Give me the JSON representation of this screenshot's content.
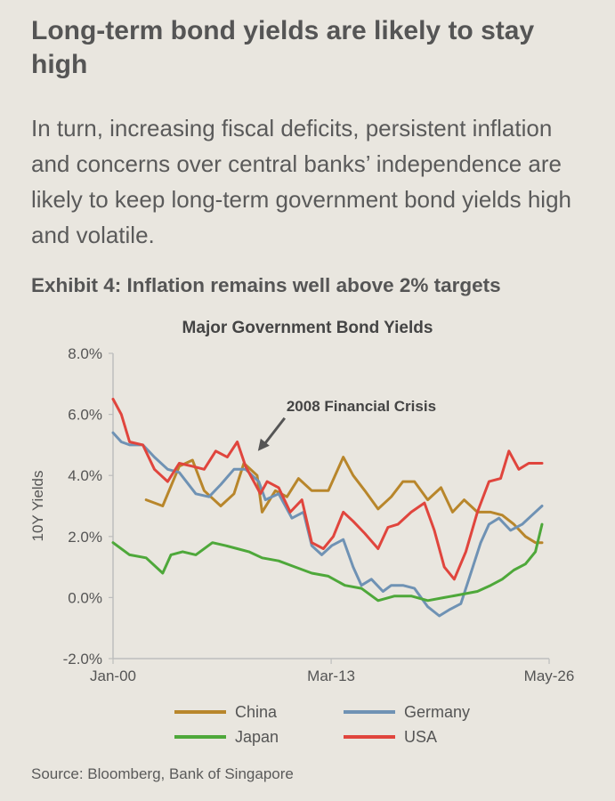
{
  "headline": "Long-term bond yields are likely to stay high",
  "intro": "In turn, increasing fiscal deficits, persistent inflation and concerns over central banks’ independence are likely to keep long-term government bond yields high and volatile.",
  "exhibit_title": "Exhibit 4: Inflation remains well above 2% targets",
  "source": "Source: Bloomberg, Bank of Singapore",
  "chart_data": {
    "type": "line",
    "title": "Major Government Bond Yields",
    "ylabel": "10Y Yields",
    "xlabel": "",
    "ylim": [
      -2.0,
      8.0
    ],
    "yticks": [
      -2.0,
      0.0,
      2.0,
      4.0,
      6.0,
      8.0
    ],
    "ytick_labels": [
      "-2.0%",
      "0.0%",
      "2.0%",
      "4.0%",
      "6.0%",
      "8.0%"
    ],
    "xlim": [
      2000,
      2026.33
    ],
    "xticks": [
      2000,
      2013.17,
      2026.33
    ],
    "xtick_labels": [
      "Jan-00",
      "Mar-13",
      "May-26"
    ],
    "legend_position": "bottom",
    "annotation": {
      "text": "2008 Financial Crisis",
      "x": 2008.75,
      "y": 4.8
    },
    "colors": {
      "China": "#b8862b",
      "Germany": "#6f92b4",
      "Japan": "#4ea83a",
      "USA": "#e0453d"
    },
    "series": [
      {
        "name": "China",
        "x": [
          2002.0,
          2003.0,
          2004.0,
          2004.8,
          2005.5,
          2006.5,
          2007.3,
          2007.9,
          2008.7,
          2009.0,
          2009.8,
          2010.5,
          2011.2,
          2012.0,
          2013.0,
          2013.9,
          2014.5,
          2015.2,
          2016.0,
          2016.8,
          2017.5,
          2018.2,
          2019.0,
          2019.8,
          2020.5,
          2021.2,
          2022.0,
          2022.8,
          2023.5,
          2024.2,
          2024.9,
          2025.5,
          2025.9
        ],
        "values": [
          3.2,
          3.0,
          4.3,
          4.5,
          3.5,
          3.0,
          3.4,
          4.4,
          4.0,
          2.8,
          3.5,
          3.3,
          3.9,
          3.5,
          3.5,
          4.6,
          4.0,
          3.5,
          2.9,
          3.3,
          3.8,
          3.8,
          3.2,
          3.6,
          2.8,
          3.2,
          2.8,
          2.8,
          2.7,
          2.4,
          2.0,
          1.8,
          1.8
        ]
      },
      {
        "name": "Germany",
        "x": [
          2000.0,
          2000.5,
          2001.0,
          2001.8,
          2002.5,
          2003.3,
          2004.0,
          2005.0,
          2005.8,
          2006.5,
          2007.3,
          2008.0,
          2008.8,
          2009.2,
          2010.0,
          2010.8,
          2011.5,
          2012.0,
          2012.6,
          2013.2,
          2013.9,
          2014.5,
          2015.0,
          2015.6,
          2016.3,
          2016.8,
          2017.5,
          2018.2,
          2019.0,
          2019.7,
          2020.3,
          2021.0,
          2021.6,
          2022.2,
          2022.7,
          2023.3,
          2024.0,
          2024.7,
          2025.3,
          2025.9
        ],
        "values": [
          5.4,
          5.1,
          5.0,
          5.0,
          4.6,
          4.2,
          4.1,
          3.4,
          3.3,
          3.7,
          4.2,
          4.2,
          3.8,
          3.2,
          3.4,
          2.6,
          2.8,
          1.7,
          1.4,
          1.7,
          1.9,
          1.0,
          0.4,
          0.6,
          0.2,
          0.4,
          0.4,
          0.3,
          -0.3,
          -0.6,
          -0.4,
          -0.2,
          0.8,
          1.8,
          2.4,
          2.6,
          2.2,
          2.4,
          2.7,
          3.0
        ]
      },
      {
        "name": "Japan",
        "x": [
          2000.0,
          2001.0,
          2002.0,
          2003.0,
          2003.5,
          2004.2,
          2005.0,
          2006.0,
          2006.8,
          2007.5,
          2008.2,
          2009.0,
          2010.0,
          2011.0,
          2012.0,
          2013.0,
          2014.0,
          2015.0,
          2016.0,
          2017.0,
          2018.0,
          2019.0,
          2020.0,
          2021.0,
          2022.0,
          2022.8,
          2023.5,
          2024.2,
          2024.9,
          2025.5,
          2025.9
        ],
        "values": [
          1.8,
          1.4,
          1.3,
          0.8,
          1.4,
          1.5,
          1.4,
          1.8,
          1.7,
          1.6,
          1.5,
          1.3,
          1.2,
          1.0,
          0.8,
          0.7,
          0.4,
          0.3,
          -0.1,
          0.05,
          0.05,
          -0.1,
          0.0,
          0.1,
          0.2,
          0.4,
          0.6,
          0.9,
          1.1,
          1.5,
          2.4
        ]
      },
      {
        "name": "USA",
        "x": [
          2000.0,
          2000.5,
          2001.0,
          2001.8,
          2002.5,
          2003.3,
          2004.0,
          2004.8,
          2005.5,
          2006.2,
          2006.9,
          2007.5,
          2008.0,
          2008.9,
          2009.3,
          2010.0,
          2010.7,
          2011.4,
          2012.0,
          2012.7,
          2013.3,
          2013.9,
          2014.5,
          2015.2,
          2016.0,
          2016.6,
          2017.2,
          2018.0,
          2018.8,
          2019.4,
          2020.0,
          2020.6,
          2021.3,
          2022.0,
          2022.7,
          2023.4,
          2023.9,
          2024.5,
          2025.1,
          2025.9
        ],
        "values": [
          6.5,
          6.0,
          5.1,
          5.0,
          4.2,
          3.8,
          4.4,
          4.3,
          4.2,
          4.8,
          4.6,
          5.1,
          4.3,
          3.4,
          3.8,
          3.6,
          2.8,
          3.2,
          1.8,
          1.6,
          2.0,
          2.8,
          2.5,
          2.1,
          1.6,
          2.3,
          2.4,
          2.8,
          3.1,
          2.2,
          1.0,
          0.6,
          1.5,
          2.8,
          3.8,
          3.9,
          4.8,
          4.2,
          4.4,
          4.4
        ]
      }
    ]
  }
}
